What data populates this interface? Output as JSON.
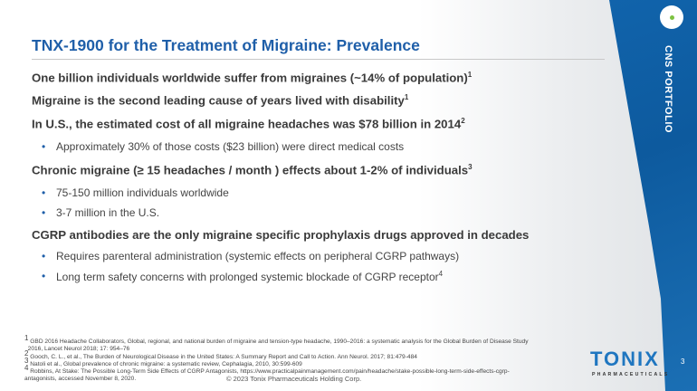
{
  "title": "TNX-1900 for the Treatment of Migraine: Prevalence",
  "side_label": "CNS PORTFOLIO",
  "bullets": [
    {
      "text": "One billion individuals worldwide suffer from migraines  (~14% of population)",
      "sup": "1"
    },
    {
      "text": "Migraine is the second leading cause of years lived with disability",
      "sup": "1"
    },
    {
      "text": "In U.S., the estimated cost of all migraine headaches was $78 billion in 2014",
      "sup": "2"
    },
    {
      "text": "Approximately 30% of those costs ($23 billion) were direct medical costs"
    },
    {
      "text": "Chronic migraine (≥ 15 headaches / month ) effects about 1-2% of individuals",
      "sup": "3"
    },
    {
      "text": "75-150 million individuals worldwide"
    },
    {
      "text": "3-7 million in the U.S."
    },
    {
      "text": "CGRP antibodies are the only migraine specific prophylaxis drugs approved in decades"
    },
    {
      "text": "Requires parenteral administration (systemic effects on peripheral CGRP pathways)"
    },
    {
      "text": "Long term safety concerns with prolonged systemic blockade of CGRP receptor",
      "sup": "4"
    }
  ],
  "footnotes": {
    "f1a": "GBD 2016 Headache Collaborators, Global, regional, and national burden of migraine and tension-type headache, 1990–2016: a systematic analysis for the Global Burden of    Disease Study",
    "f1b": "2016, Lancet Neurol 2018; 17: 954–76",
    "f2": "Gooch, C. L., et al., The Burden of Neurological Disease in the United States: A Summary Report and Call to Action. Ann Neurol. 2017; 81:479-484",
    "f3": "Natoli et al., Global prevalence of chronic migraine: a systematic review, Cephalagia, 2010, 30:599-609",
    "f4": "Robbins, At Stake: The Possible Long-Term Side Effects of CGRP Antagonists, ",
    "f4_link_a": "https://www.practicalpainmanagement.com/pain/headache/stake-possible-long-term-side-effects-cgrp-",
    "f4_link_b": "antagonists",
    "f4_end": ", accessed November 8, 2020."
  },
  "copyright": "© 2023 Tonix Pharmaceuticals Holding Corp.",
  "logo": {
    "name": "TONIX",
    "sub": "PHARMACEUTICALS"
  },
  "page_number": "3"
}
